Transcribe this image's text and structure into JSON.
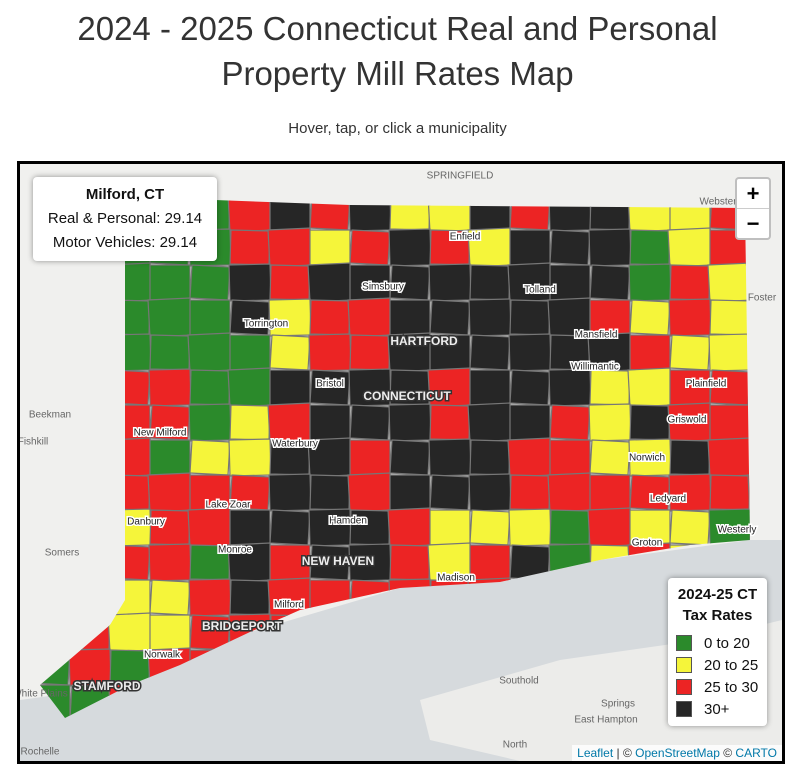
{
  "header": {
    "title_lines": [
      "2024 - 2025 Connecticut Real and Personal",
      "Property Mill Rates Map"
    ],
    "subtitle": "Hover, tap, or click a municipality"
  },
  "info_box": {
    "title": "Milford, CT",
    "rows": [
      {
        "label": "Real & Personal:",
        "value": 29.14
      },
      {
        "label": "Motor Vehicles:",
        "value": 29.14
      }
    ]
  },
  "zoom": {
    "zoom_in": "+",
    "zoom_out": "−"
  },
  "legend": {
    "title_lines": [
      "2024-25 CT",
      "Tax Rates"
    ],
    "items": [
      {
        "label": "0 to 20",
        "color": "#2b8a2b"
      },
      {
        "label": "20 to 25",
        "color": "#f5f53a"
      },
      {
        "label": "25 to 30",
        "color": "#ec2424"
      },
      {
        "label": "30+",
        "color": "#262626"
      }
    ]
  },
  "map_labels": [
    "SPRINGFIELD",
    "Webster",
    "Enfield",
    "Simsbury",
    "Tolland",
    "Foster",
    "Torrington",
    "HARTFORD",
    "Mansfield",
    "Bristol",
    "CONNECTICUT",
    "Willimantic",
    "Plainfield",
    "Beekman",
    "Fishkill",
    "New Milford",
    "Griswold",
    "Waterbury",
    "Norwich",
    "Lake Zoar",
    "Ledyard",
    "Danbury",
    "Hamden",
    "Westerly",
    "Somers",
    "Monroe",
    "NEW HAVEN",
    "Madison",
    "Groton",
    "Milford",
    "BRIDGEPORT",
    "Norwalk",
    "Southold",
    "STAMFORD",
    "White Plains",
    "Springs",
    "East Hampton",
    "Rochelle",
    "North"
  ],
  "attribution": {
    "leaflet": "Leaflet",
    "separator": "| ©",
    "osm": "OpenStreetMap",
    "separator_2": "©",
    "carto": "CARTO"
  }
}
